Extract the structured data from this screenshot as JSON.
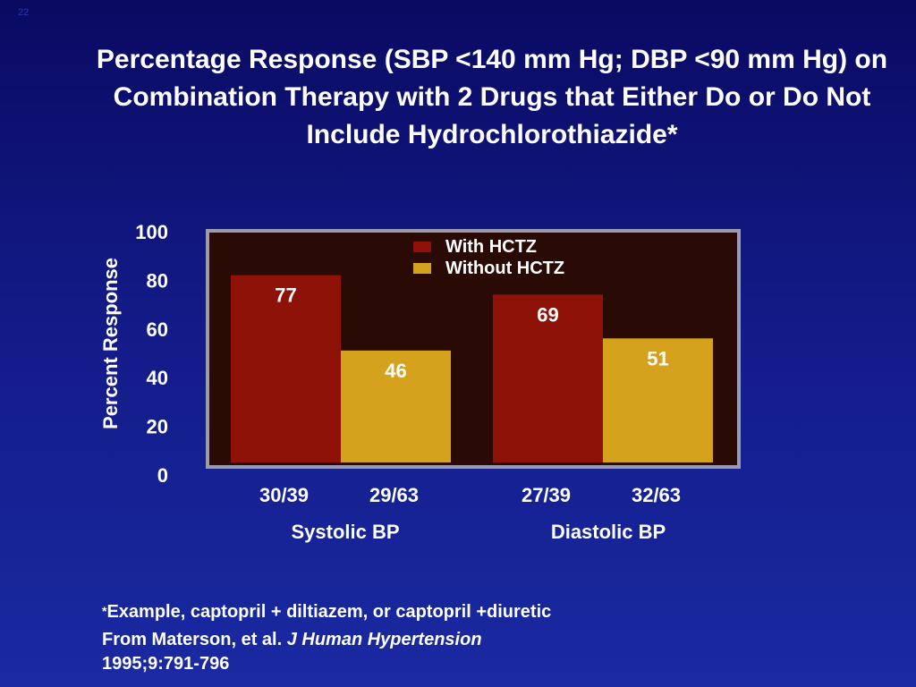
{
  "slide": {
    "number": "22"
  },
  "title": "Percentage Response (SBP <140 mm Hg; DBP <90 mm Hg) on Combination Therapy with 2 Drugs that Either Do or Do Not Include Hydrochlorothiazide*",
  "chart_data": {
    "type": "bar",
    "ylabel": "Percent Response",
    "ylim": [
      0,
      100
    ],
    "yticks": [
      0,
      20,
      40,
      60,
      80,
      100
    ],
    "groups": [
      {
        "label": "Systolic BP",
        "categories": [
          "30/39",
          "29/63"
        ]
      },
      {
        "label": "Diastolic BP",
        "categories": [
          "27/39",
          "32/63"
        ]
      }
    ],
    "categories": [
      "30/39",
      "29/63",
      "27/39",
      "32/63"
    ],
    "series": [
      {
        "name": "With HCTZ",
        "color": "#8e1208",
        "values": [
          77,
          null,
          69,
          null
        ]
      },
      {
        "name": "Without HCTZ",
        "color": "#d4a21c",
        "values": [
          null,
          46,
          null,
          51
        ]
      }
    ],
    "legend_position": "top-right",
    "grid": false,
    "colors": {
      "plot_bg": "#2a0a04",
      "plot_border": "#9a9ab0"
    }
  },
  "footnote": {
    "star": "*",
    "line1": "Example, captopril + diltiazem, or captopril +diuretic",
    "line2_prefix": "From Materson, et al. ",
    "line2_journal": "J Human Hypertension",
    "line3": "1995;9:791-796"
  }
}
